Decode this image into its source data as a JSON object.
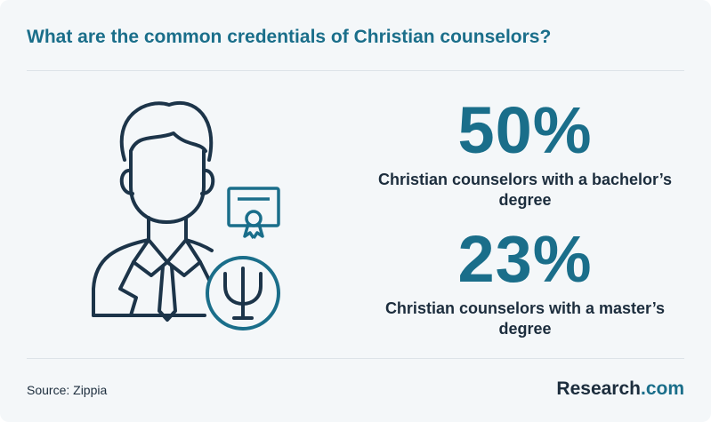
{
  "header": {
    "title": "What are the common credentials of Christian counselors?"
  },
  "stats": [
    {
      "figure": "50%",
      "description": "Christian counselors with a bachelor’s degree"
    },
    {
      "figure": "23%",
      "description": "Christian counselors with a master’s degree"
    }
  ],
  "footer": {
    "source": "Source: Zippia",
    "brand": "Research",
    "brand_suffix": ".com"
  }
}
